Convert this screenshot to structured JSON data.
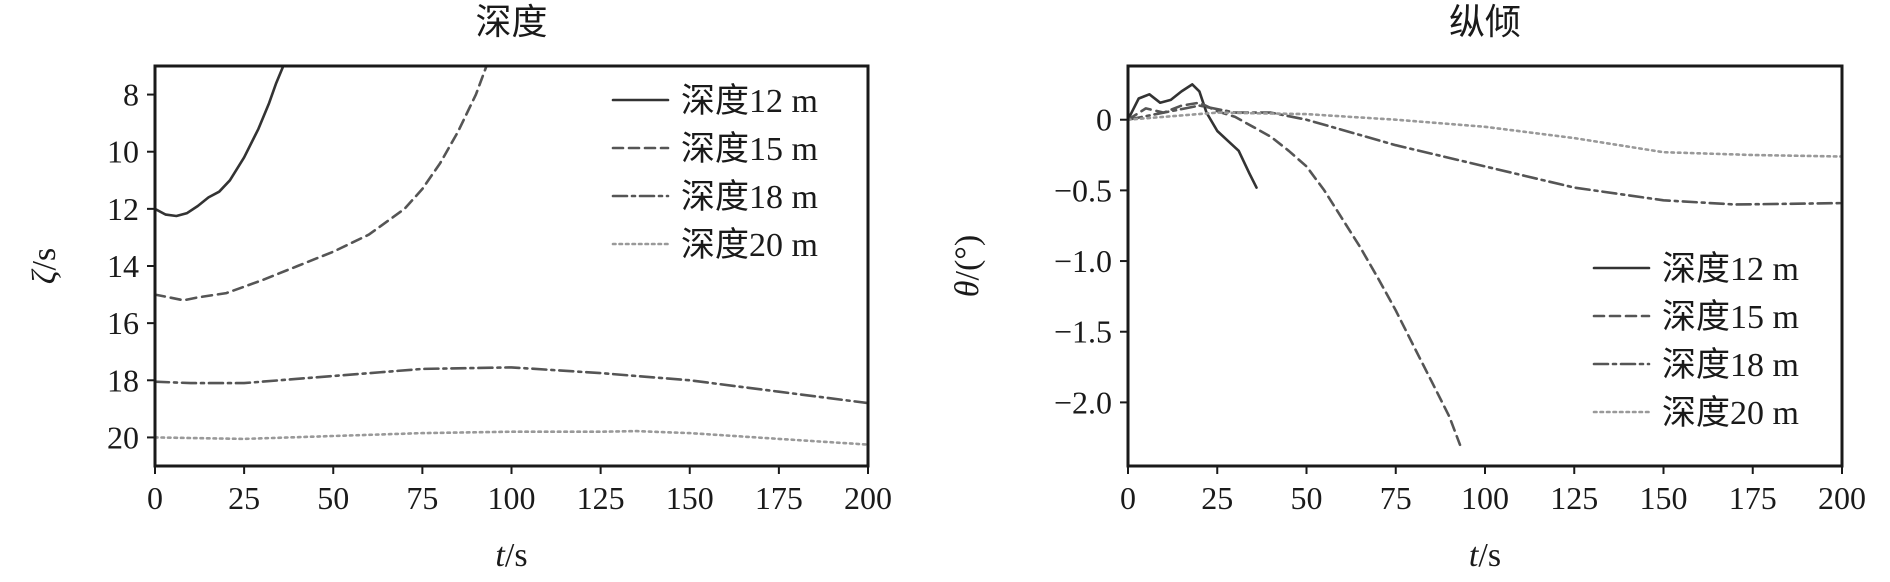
{
  "chart_data": [
    {
      "type": "line",
      "title": "深度",
      "xlabel": "t/s",
      "xlabel_var": "t",
      "xlabel_unit": "/s",
      "ylabel": "ζ/s",
      "ylabel_var": "ζ",
      "ylabel_unit": "/s",
      "xlim": [
        0,
        200
      ],
      "ylim": [
        21,
        7
      ],
      "y_inverted": true,
      "xticks": [
        0,
        25,
        50,
        75,
        100,
        125,
        150,
        175,
        200
      ],
      "yticks": [
        8,
        10,
        12,
        14,
        16,
        18,
        20
      ],
      "ytick_labels": [
        "8",
        "10",
        "12",
        "14",
        "16",
        "18",
        "20"
      ],
      "legend_position": "upper right",
      "series": [
        {
          "name": "深度12 m",
          "dash": "solid",
          "color": "#333333",
          "x": [
            0,
            3,
            6,
            9,
            12,
            15,
            18,
            21,
            25,
            29,
            32,
            34,
            36
          ],
          "y": [
            12.0,
            12.2,
            12.25,
            12.15,
            11.9,
            11.6,
            11.4,
            11.0,
            10.2,
            9.2,
            8.3,
            7.6,
            7.0
          ]
        },
        {
          "name": "深度15 m",
          "dash": "dashed",
          "color": "#555555",
          "x": [
            0,
            4,
            8,
            12,
            20,
            30,
            40,
            50,
            60,
            70,
            75,
            80,
            85,
            90,
            93
          ],
          "y": [
            15.0,
            15.1,
            15.2,
            15.1,
            14.95,
            14.5,
            14.0,
            13.5,
            12.9,
            12.0,
            11.3,
            10.4,
            9.3,
            8.0,
            7.0
          ]
        },
        {
          "name": "深度18 m",
          "dash": "dashdot",
          "color": "#555555",
          "x": [
            0,
            10,
            25,
            50,
            75,
            100,
            125,
            150,
            175,
            200
          ],
          "y": [
            18.05,
            18.1,
            18.1,
            17.85,
            17.6,
            17.55,
            17.75,
            18.0,
            18.4,
            18.8
          ]
        },
        {
          "name": "深度20 m",
          "dash": "dotted",
          "color": "#999999",
          "x": [
            0,
            25,
            50,
            75,
            100,
            125,
            135,
            150,
            175,
            200
          ],
          "y": [
            20.0,
            20.05,
            19.95,
            19.85,
            19.8,
            19.8,
            19.78,
            19.85,
            20.05,
            20.25
          ]
        }
      ]
    },
    {
      "type": "line",
      "title": "纵倾",
      "xlabel": "t/s",
      "xlabel_var": "t",
      "xlabel_unit": "/s",
      "ylabel": "θ/(°)",
      "ylabel_var": "θ",
      "ylabel_unit": "/(°)",
      "xlim": [
        0,
        200
      ],
      "ylim": [
        -2.45,
        0.38
      ],
      "y_inverted": false,
      "xticks": [
        0,
        25,
        50,
        75,
        100,
        125,
        150,
        175,
        200
      ],
      "yticks": [
        0,
        -0.5,
        -1.0,
        -1.5,
        -2.0
      ],
      "ytick_labels": [
        "0",
        "−0.5",
        "−1.0",
        "−1.5",
        "−2.0"
      ],
      "legend_position": "lower right",
      "series": [
        {
          "name": "深度12 m",
          "dash": "solid",
          "color": "#333333",
          "x": [
            0,
            3,
            6,
            9,
            12,
            15,
            18,
            20,
            22,
            25,
            28,
            31,
            34,
            36
          ],
          "y": [
            0,
            0.15,
            0.18,
            0.12,
            0.14,
            0.2,
            0.25,
            0.2,
            0.05,
            -0.08,
            -0.15,
            -0.22,
            -0.38,
            -0.48
          ]
        },
        {
          "name": "深度15 m",
          "dash": "dashed",
          "color": "#555555",
          "x": [
            0,
            5,
            10,
            15,
            20,
            25,
            30,
            35,
            40,
            45,
            50,
            55,
            60,
            65,
            70,
            75,
            80,
            85,
            90,
            93
          ],
          "y": [
            0,
            0.08,
            0.05,
            0.1,
            0.12,
            0.06,
            0.02,
            -0.05,
            -0.12,
            -0.22,
            -0.33,
            -0.5,
            -0.7,
            -0.9,
            -1.12,
            -1.35,
            -1.6,
            -1.85,
            -2.1,
            -2.3
          ]
        },
        {
          "name": "深度18 m",
          "dash": "dashdot",
          "color": "#555555",
          "x": [
            0,
            10,
            20,
            30,
            40,
            50,
            75,
            100,
            125,
            150,
            170,
            200
          ],
          "y": [
            0,
            0.05,
            0.1,
            0.05,
            0.05,
            0.0,
            -0.18,
            -0.33,
            -0.48,
            -0.57,
            -0.6,
            -0.59
          ]
        },
        {
          "name": "深度20 m",
          "dash": "dotted",
          "color": "#999999",
          "x": [
            0,
            25,
            50,
            75,
            100,
            125,
            150,
            175,
            200
          ],
          "y": [
            0,
            0.05,
            0.04,
            0.0,
            -0.05,
            -0.13,
            -0.23,
            -0.25,
            -0.26
          ]
        }
      ]
    }
  ]
}
